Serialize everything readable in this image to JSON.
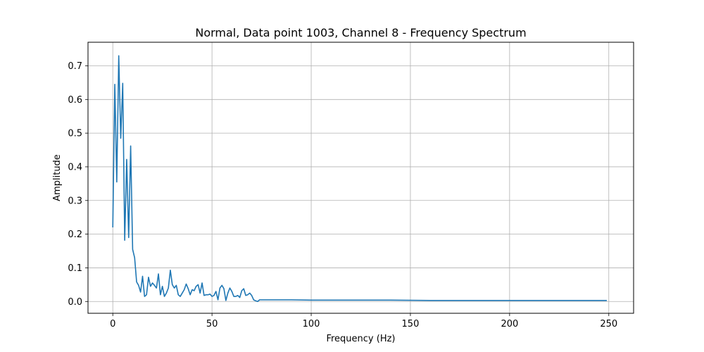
{
  "chart_data": {
    "type": "line",
    "title": "Normal, Data point 1003, Channel 8 - Frequency Spectrum",
    "xlabel": "Frequency (Hz)",
    "ylabel": "Amplitude",
    "xlim": [
      -12.5,
      262.5
    ],
    "ylim": [
      -0.035,
      0.77
    ],
    "xticks": [
      0,
      50,
      100,
      150,
      200,
      250
    ],
    "yticks": [
      0.0,
      0.1,
      0.2,
      0.3,
      0.4,
      0.5,
      0.6,
      0.7
    ],
    "xtick_labels": [
      "0",
      "50",
      "100",
      "150",
      "200",
      "250"
    ],
    "ytick_labels": [
      "0.0",
      "0.1",
      "0.2",
      "0.3",
      "0.4",
      "0.5",
      "0.6",
      "0.7"
    ],
    "grid": true,
    "legend": "none",
    "colors": {
      "line": "#1f77b4",
      "grid": "#b0b0b0",
      "axes": "#000000"
    },
    "series": [
      {
        "x": [
          0,
          1,
          2,
          3,
          4,
          5,
          6,
          7,
          8,
          9,
          10,
          11,
          12,
          13,
          14,
          15,
          16,
          17,
          18,
          19,
          20,
          21,
          22,
          23,
          24,
          25,
          26,
          27,
          28,
          29,
          30,
          31,
          32,
          33,
          34,
          35,
          36,
          37,
          38,
          39,
          40,
          41,
          42,
          43,
          44,
          45,
          46,
          47,
          48,
          49,
          50,
          51,
          52,
          53,
          54,
          55,
          56,
          57,
          58,
          59,
          60,
          61,
          62,
          63,
          64,
          65,
          66,
          67,
          68,
          69,
          70,
          71,
          72,
          73,
          74,
          75,
          80,
          90,
          100,
          120,
          140,
          160,
          180,
          200,
          220,
          240,
          249
        ],
        "values": [
          0.22,
          0.645,
          0.355,
          0.73,
          0.485,
          0.648,
          0.182,
          0.422,
          0.19,
          0.462,
          0.155,
          0.13,
          0.058,
          0.048,
          0.028,
          0.075,
          0.015,
          0.02,
          0.072,
          0.045,
          0.055,
          0.048,
          0.04,
          0.082,
          0.02,
          0.045,
          0.015,
          0.025,
          0.04,
          0.093,
          0.05,
          0.04,
          0.048,
          0.02,
          0.015,
          0.025,
          0.035,
          0.052,
          0.038,
          0.02,
          0.035,
          0.032,
          0.045,
          0.05,
          0.025,
          0.055,
          0.018,
          0.02,
          0.02,
          0.022,
          0.015,
          0.018,
          0.03,
          0.005,
          0.04,
          0.048,
          0.038,
          0.003,
          0.025,
          0.04,
          0.03,
          0.015,
          0.015,
          0.018,
          0.012,
          0.032,
          0.038,
          0.018,
          0.02,
          0.025,
          0.018,
          0.005,
          0.002,
          0.0,
          0.005,
          0.005,
          0.005,
          0.005,
          0.004,
          0.004,
          0.004,
          0.003,
          0.003,
          0.003,
          0.003,
          0.003,
          0.003
        ]
      }
    ]
  }
}
